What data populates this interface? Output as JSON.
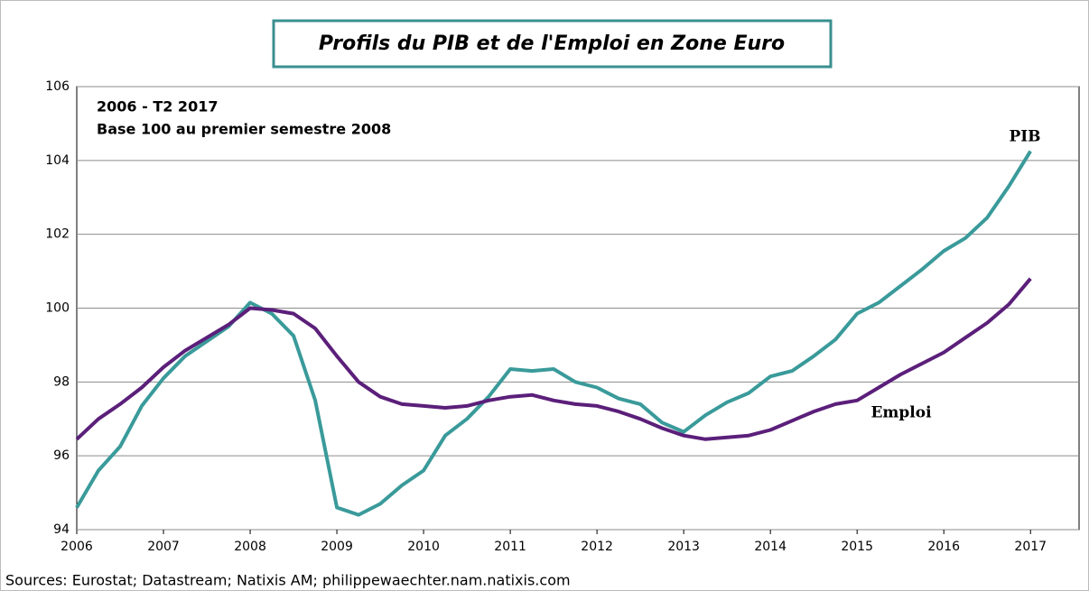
{
  "chart_data": {
    "type": "line",
    "title": "Profils du PIB et de l'Emploi en Zone Euro",
    "subtitle": [
      "2006 - T2 2017",
      "Base 100 au premier semestre 2008"
    ],
    "source": "Sources: Eurostat; Datastream; Natixis AM; philippewaechter.nam.natixis.com",
    "x": [
      2006,
      2006.25,
      2006.5,
      2006.75,
      2007,
      2007.25,
      2007.5,
      2007.75,
      2008,
      2008.25,
      2008.5,
      2008.75,
      2009,
      2009.25,
      2009.5,
      2009.75,
      2010,
      2010.25,
      2010.5,
      2010.75,
      2011,
      2011.25,
      2011.5,
      2011.75,
      2012,
      2012.25,
      2012.5,
      2012.75,
      2013,
      2013.25,
      2013.5,
      2013.75,
      2014,
      2014.25,
      2014.5,
      2014.75,
      2015,
      2015.25,
      2015.5,
      2015.75,
      2016,
      2016.25,
      2016.5,
      2016.75,
      2017
    ],
    "series": [
      {
        "name": "PIB",
        "color": "#3a9a9a",
        "values": [
          94.6,
          95.6,
          96.25,
          97.35,
          98.1,
          98.7,
          99.1,
          99.5,
          100.15,
          99.85,
          99.25,
          97.5,
          94.6,
          94.4,
          94.7,
          95.2,
          95.6,
          96.55,
          97.0,
          97.6,
          98.35,
          98.3,
          98.35,
          98.0,
          97.85,
          97.55,
          97.4,
          96.9,
          96.65,
          97.1,
          97.45,
          97.7,
          98.15,
          98.3,
          98.7,
          99.15,
          99.85,
          100.15,
          100.6,
          101.05,
          101.55,
          101.9,
          102.45,
          103.3,
          104.25
        ]
      },
      {
        "name": "Emploi",
        "color": "#5b1f7a",
        "values": [
          96.45,
          97.0,
          97.4,
          97.85,
          98.4,
          98.85,
          99.2,
          99.55,
          100.0,
          99.95,
          99.85,
          99.45,
          98.7,
          98.0,
          97.6,
          97.4,
          97.35,
          97.3,
          97.35,
          97.5,
          97.6,
          97.65,
          97.5,
          97.4,
          97.35,
          97.2,
          97.0,
          96.75,
          96.55,
          96.45,
          96.5,
          96.55,
          96.7,
          96.95,
          97.2,
          97.4,
          97.5,
          97.85,
          98.2,
          98.5,
          98.8,
          99.2,
          99.6,
          100.1,
          100.8
        ]
      }
    ],
    "xlim": [
      2006,
      2017.56
    ],
    "xticks": [
      2006,
      2007,
      2008,
      2009,
      2010,
      2011,
      2012,
      2013,
      2014,
      2015,
      2016,
      2017
    ],
    "ylim": [
      94,
      106
    ],
    "yticks": [
      94,
      96,
      98,
      100,
      102,
      104,
      106
    ],
    "grid": true
  }
}
